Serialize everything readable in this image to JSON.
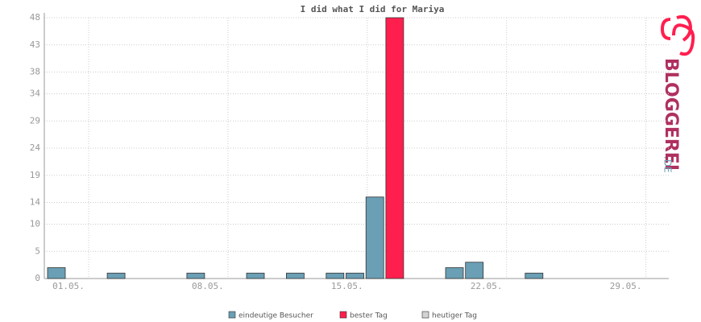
{
  "chart_data": {
    "type": "bar",
    "title": "I did what I did for Mariya",
    "categories": [
      "01.05.",
      null,
      null,
      null,
      null,
      null,
      null,
      "08.05.",
      null,
      null,
      null,
      null,
      null,
      null,
      "15.05.",
      null,
      null,
      null,
      null,
      null,
      null,
      "22.05.",
      null,
      null,
      null,
      null,
      null,
      null,
      "29.05.",
      null,
      null
    ],
    "series": [
      {
        "name": "eindeutige Besucher",
        "color": "#6a9fb5",
        "values": [
          2,
          0,
          0,
          1,
          0,
          0,
          0,
          1,
          0,
          0,
          1,
          0,
          1,
          0,
          1,
          1,
          15,
          null,
          0,
          0,
          2,
          3,
          0,
          0,
          1,
          0,
          0,
          0,
          0,
          0,
          0
        ]
      },
      {
        "name": "bester Tag",
        "color": "#ff1f4f",
        "values": [
          null,
          null,
          null,
          null,
          null,
          null,
          null,
          null,
          null,
          null,
          null,
          null,
          null,
          null,
          null,
          null,
          null,
          48,
          null,
          null,
          null,
          null,
          null,
          null,
          null,
          null,
          null,
          null,
          null,
          null,
          null
        ]
      },
      {
        "name": "heutiger Tag",
        "color": "#d3d3d3",
        "values": [
          null,
          null,
          null,
          null,
          null,
          null,
          null,
          null,
          null,
          null,
          null,
          null,
          null,
          null,
          null,
          null,
          null,
          null,
          null,
          null,
          null,
          null,
          null,
          null,
          null,
          null,
          null,
          null,
          null,
          null,
          null
        ]
      }
    ],
    "ylim": [
      0,
      48
    ],
    "yticks": [
      0,
      5,
      10,
      14,
      19,
      24,
      29,
      34,
      38,
      43,
      48
    ],
    "grid": true
  },
  "logo": {
    "name": "BLOGGEREI",
    "tld": ".DE"
  }
}
